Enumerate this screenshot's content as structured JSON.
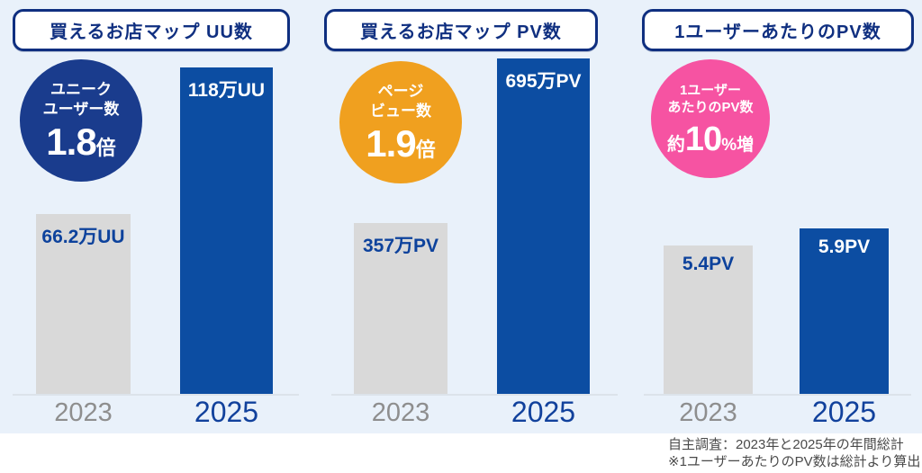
{
  "colors": {
    "background": "#e9f1fa",
    "title_navy": "#0f2f80",
    "badge_blue": "#1a3c8d",
    "badge_orange": "#f0a01f",
    "badge_pink": "#f653a2",
    "bar_blue": "#0c4da2",
    "bar_gray": "#d9d9d9",
    "value_navy": "#0d429c",
    "tick_gray": "#8e8e8e",
    "tick_blue": "#11419c",
    "footnote_gray": "#4a4a4a"
  },
  "chart_data": [
    {
      "type": "bar",
      "title": "買えるお店マップ UU数",
      "categories": [
        "2023",
        "2025"
      ],
      "values": [
        66.2,
        118
      ],
      "unit": "万UU",
      "data_labels": [
        "66.2万UU",
        "118万UU"
      ],
      "annotation": "ユニークユーザー数 1.8倍",
      "bar_colors": [
        "#d9d9d9",
        "#0c4da2"
      ],
      "grid": false,
      "legend": false
    },
    {
      "type": "bar",
      "title": "買えるお店マップ PV数",
      "categories": [
        "2023",
        "2025"
      ],
      "values": [
        357,
        695
      ],
      "unit": "万PV",
      "data_labels": [
        "357万PV",
        "695万PV"
      ],
      "annotation": "ページビュー数 1.9倍",
      "bar_colors": [
        "#d9d9d9",
        "#0c4da2"
      ],
      "grid": false,
      "legend": false
    },
    {
      "type": "bar",
      "title": "1ユーザーあたりのPV数",
      "categories": [
        "2023",
        "2025"
      ],
      "values": [
        5.4,
        5.9
      ],
      "unit": "PV",
      "data_labels": [
        "5.4PV",
        "5.9PV"
      ],
      "annotation": "1ユーザーあたりのPV数 約10%増",
      "bar_colors": [
        "#d9d9d9",
        "#0c4da2"
      ],
      "grid": false,
      "legend": false
    }
  ],
  "panels": [
    {
      "title": "買えるお店マップ UU数",
      "badge": {
        "line1": "ユニーク",
        "line2": "ユーザー数",
        "prefix": "",
        "value": "1.8",
        "suffix": "倍"
      },
      "bars": [
        {
          "year": "2023",
          "label": "66.2万UU"
        },
        {
          "year": "2025",
          "label": "118万UU"
        }
      ]
    },
    {
      "title": "買えるお店マップ PV数",
      "badge": {
        "line1": "ページ",
        "line2": "ビュー数",
        "prefix": "",
        "value": "1.9",
        "suffix": "倍"
      },
      "bars": [
        {
          "year": "2023",
          "label": "357万PV"
        },
        {
          "year": "2025",
          "label": "695万PV"
        }
      ]
    },
    {
      "title": "1ユーザーあたりのPV数",
      "badge": {
        "line1": "1ユーザー",
        "line2": "あたりのPV数",
        "prefix": "約",
        "value": "10",
        "suffix": "%増"
      },
      "bars": [
        {
          "year": "2023",
          "label": "5.4PV"
        },
        {
          "year": "2025",
          "label": "5.9PV"
        }
      ]
    }
  ],
  "footnote": {
    "line1": "自主調査：2023年と2025年の年間総計",
    "line2": "※1ユーザーあたりのPV数は総計より算出"
  }
}
